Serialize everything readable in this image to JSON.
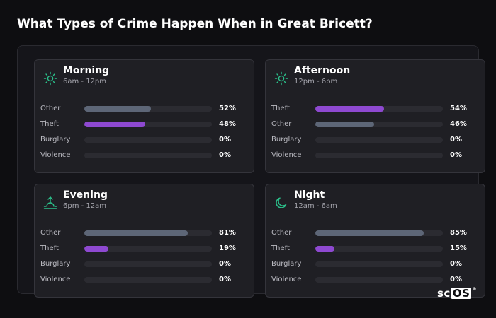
{
  "title": "What Types of Crime Happen When in Great Bricett?",
  "colors": {
    "Other": "#5d6677",
    "Theft": "#8e49d1",
    "Burglary": "#5d6677",
    "Violence": "#5d6677",
    "icon": "#2bbf8a"
  },
  "chart_data": [
    {
      "type": "bar",
      "title": "Morning",
      "subtitle": "6am - 12pm",
      "icon": "sun-icon",
      "categories": [
        "Other",
        "Theft",
        "Burglary",
        "Violence"
      ],
      "values": [
        52,
        48,
        0,
        0
      ],
      "labels": [
        "52%",
        "48%",
        "0%",
        "0%"
      ],
      "ylim": [
        0,
        100
      ]
    },
    {
      "type": "bar",
      "title": "Afternoon",
      "subtitle": "12pm - 6pm",
      "icon": "sun-icon",
      "categories": [
        "Theft",
        "Other",
        "Burglary",
        "Violence"
      ],
      "values": [
        54,
        46,
        0,
        0
      ],
      "labels": [
        "54%",
        "46%",
        "0%",
        "0%"
      ],
      "ylim": [
        0,
        100
      ]
    },
    {
      "type": "bar",
      "title": "Evening",
      "subtitle": "6pm - 12am",
      "icon": "sunset-icon",
      "categories": [
        "Other",
        "Theft",
        "Burglary",
        "Violence"
      ],
      "values": [
        81,
        19,
        0,
        0
      ],
      "labels": [
        "81%",
        "19%",
        "0%",
        "0%"
      ],
      "ylim": [
        0,
        100
      ]
    },
    {
      "type": "bar",
      "title": "Night",
      "subtitle": "12am - 6am",
      "icon": "moon-icon",
      "categories": [
        "Other",
        "Theft",
        "Burglary",
        "Violence"
      ],
      "values": [
        85,
        15,
        0,
        0
      ],
      "labels": [
        "85%",
        "15%",
        "0%",
        "0%"
      ],
      "ylim": [
        0,
        100
      ]
    }
  ],
  "logo": {
    "text_a": "sc",
    "text_b": "OS",
    "mark": "®"
  }
}
